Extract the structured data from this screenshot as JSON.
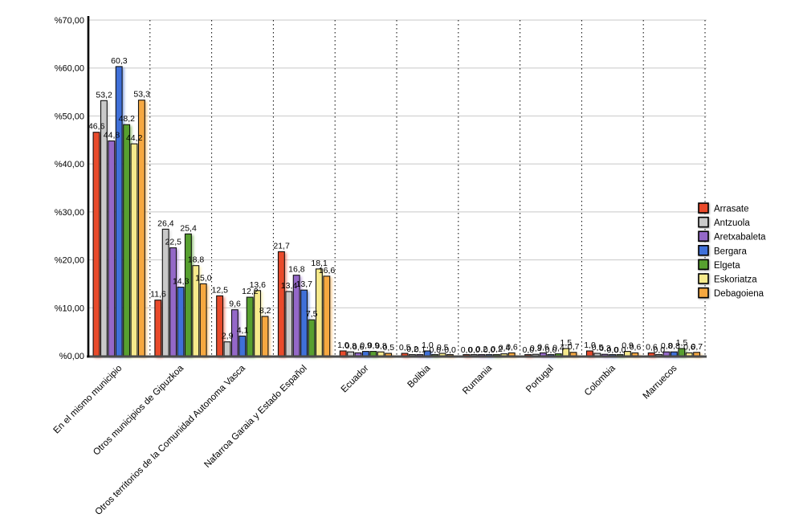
{
  "chart_data": {
    "type": "bar",
    "title": "",
    "xlabel": "",
    "ylabel": "",
    "ylim": [
      0,
      70
    ],
    "grid": true,
    "legend_position": "right",
    "y_tick_labels": [
      "%0,00",
      "%10,00",
      "%20,00",
      "%30,00",
      "%40,00",
      "%50,00",
      "%60,00",
      "%70,00"
    ],
    "value_decimal_separator": ",",
    "categories": [
      "En el mismo municipio",
      "Otros municipios de Gipuzkoa",
      "Otros territorios de la Comunidad Autonoma Vasca",
      "Nafarroa Garaia y Estado Español",
      "Ecuador",
      "Bolibia",
      "Rumania",
      "Portugal",
      "Colombia",
      "Marruecos"
    ],
    "series": [
      {
        "name": "Arrasate",
        "color": "#E94A2B",
        "values": [
          46.6,
          11.6,
          12.5,
          21.7,
          1.0,
          0.5,
          0.0,
          0.0,
          1.0,
          0.6
        ]
      },
      {
        "name": "Antzuola",
        "color": "#C9C9C9",
        "values": [
          53.2,
          26.4,
          2.9,
          13.4,
          0.8,
          0.2,
          0.0,
          0.3,
          0.5,
          0.0
        ]
      },
      {
        "name": "Aretxabaleta",
        "color": "#9468C8",
        "values": [
          44.8,
          22.5,
          9.6,
          16.8,
          0.6,
          0.1,
          0.2,
          0.6,
          0.3,
          0.8
        ]
      },
      {
        "name": "Bergara",
        "color": "#3F70D9",
        "values": [
          60.3,
          14.3,
          4.1,
          13.7,
          0.9,
          1.0,
          0.0,
          0.0,
          0.0,
          0.8
        ]
      },
      {
        "name": "Elgeta",
        "color": "#57A02F",
        "values": [
          48.2,
          25.4,
          12.2,
          7.5,
          0.9,
          0.0,
          0.2,
          0.4,
          0.0,
          1.5
        ]
      },
      {
        "name": "Eskoriatza",
        "color": "#F6EA8C",
        "values": [
          44.2,
          18.8,
          13.6,
          18.1,
          0.8,
          0.5,
          0.4,
          1.5,
          0.9,
          0.6
        ]
      },
      {
        "name": "Debagoiena",
        "color": "#F6A840",
        "values": [
          53.3,
          15.0,
          8.2,
          16.6,
          0.5,
          0.0,
          0.6,
          0.7,
          0.6,
          0.7
        ]
      }
    ]
  },
  "colors": {
    "gridline": "#c8c8c8",
    "separator": "#000000",
    "axis": "#000000",
    "baseline": "#4d4d4d",
    "bar_outline": "#111111"
  }
}
